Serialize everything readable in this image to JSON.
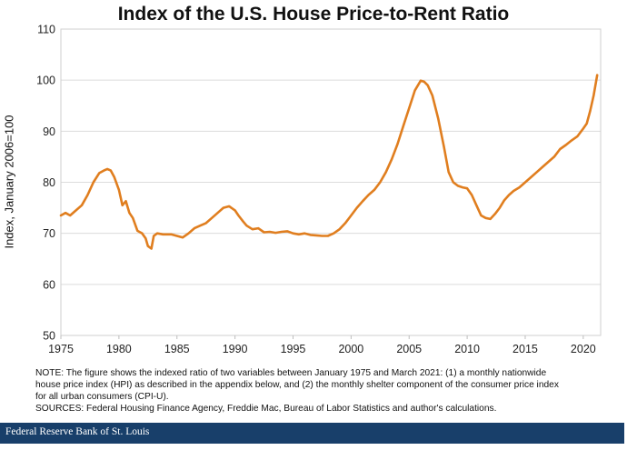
{
  "chart_data": {
    "type": "line",
    "title": "Index of the U.S. House Price-to-Rent Ratio",
    "xlabel": "",
    "ylabel": "Index, January 2006=100",
    "xlim": [
      1975,
      2021.5
    ],
    "ylim": [
      50,
      110
    ],
    "x_ticks": [
      "1975",
      "1980",
      "1985",
      "1990",
      "1995",
      "2000",
      "2005",
      "2010",
      "2015",
      "2020"
    ],
    "y_ticks": [
      "50",
      "60",
      "70",
      "80",
      "90",
      "100",
      "110"
    ],
    "grid": "horizontal",
    "line_color": "#e07e1f",
    "series": [
      {
        "x": [
          1975.0,
          1975.4,
          1975.8,
          1976.3,
          1976.8,
          1977.3,
          1977.8,
          1978.3,
          1978.7,
          1979.0,
          1979.3,
          1979.6,
          1980.0,
          1980.3,
          1980.6,
          1980.9,
          1981.2,
          1981.6,
          1982.0,
          1982.3,
          1982.5,
          1982.8,
          1983.0,
          1983.3,
          1983.8,
          1984.5,
          1985.0,
          1985.5,
          1986.0,
          1986.5,
          1987.0,
          1987.5,
          1988.0,
          1988.5,
          1989.0,
          1989.5,
          1990.0,
          1990.3,
          1990.7,
          1991.0,
          1991.5,
          1992.0,
          1992.5,
          1993.0,
          1993.5,
          1994.0,
          1994.5,
          1995.0,
          1995.5,
          1996.0,
          1996.5,
          1997.0,
          1997.5,
          1998.0,
          1998.5,
          1999.0,
          1999.5,
          2000.0,
          2000.5,
          2001.0,
          2001.5,
          2002.0,
          2002.5,
          2003.0,
          2003.5,
          2004.0,
          2004.5,
          2005.0,
          2005.5,
          2006.0,
          2006.3,
          2006.6,
          2007.0,
          2007.5,
          2008.0,
          2008.4,
          2008.8,
          2009.2,
          2009.6,
          2010.0,
          2010.4,
          2010.8,
          2011.2,
          2011.6,
          2012.0,
          2012.4,
          2012.8,
          2013.2,
          2013.6,
          2014.0,
          2014.5,
          2015.0,
          2015.5,
          2016.0,
          2016.5,
          2017.0,
          2017.5,
          2018.0,
          2018.5,
          2019.0,
          2019.5,
          2020.0,
          2020.3,
          2020.6,
          2020.9,
          2021.2
        ],
        "y": [
          73.5,
          74.0,
          73.5,
          74.5,
          75.5,
          77.5,
          80.0,
          81.8,
          82.3,
          82.6,
          82.3,
          81.0,
          78.5,
          75.5,
          76.3,
          74.0,
          73.0,
          70.5,
          70.0,
          69.0,
          67.5,
          67.0,
          69.5,
          70.0,
          69.8,
          69.8,
          69.5,
          69.2,
          70.0,
          71.0,
          71.5,
          72.0,
          73.0,
          74.0,
          75.0,
          75.3,
          74.5,
          73.5,
          72.3,
          71.5,
          70.8,
          71.0,
          70.2,
          70.3,
          70.1,
          70.3,
          70.4,
          70.0,
          69.8,
          70.0,
          69.7,
          69.6,
          69.5,
          69.5,
          70.0,
          70.8,
          72.0,
          73.5,
          75.0,
          76.3,
          77.5,
          78.5,
          80.0,
          82.0,
          84.5,
          87.5,
          91.0,
          94.5,
          98.0,
          99.9,
          99.7,
          99.0,
          97.0,
          92.5,
          87.0,
          82.0,
          80.0,
          79.3,
          79.0,
          78.8,
          77.5,
          75.5,
          73.5,
          73.0,
          72.8,
          73.8,
          75.0,
          76.5,
          77.5,
          78.3,
          79.0,
          80.0,
          81.0,
          82.0,
          83.0,
          84.0,
          85.0,
          86.5,
          87.3,
          88.2,
          89.0,
          90.5,
          91.5,
          94.0,
          97.0,
          101.0
        ]
      }
    ]
  },
  "note": {
    "line1": "NOTE: The figure shows the indexed ratio of two variables between January 1975 and March 2021: (1) a monthly nationwide",
    "line2": "house price index (HPI) as described in the appendix below, and (2) the monthly shelter component of the consumer price index",
    "line3": "for all urban consumers (CPI-U).",
    "sources": "SOURCES: Federal Housing Finance Agency, Freddie Mac, Bureau of Labor Statistics and author's calculations."
  },
  "footer": {
    "text": "Federal Reserve Bank of St. Louis",
    "background": "#183f6a"
  }
}
